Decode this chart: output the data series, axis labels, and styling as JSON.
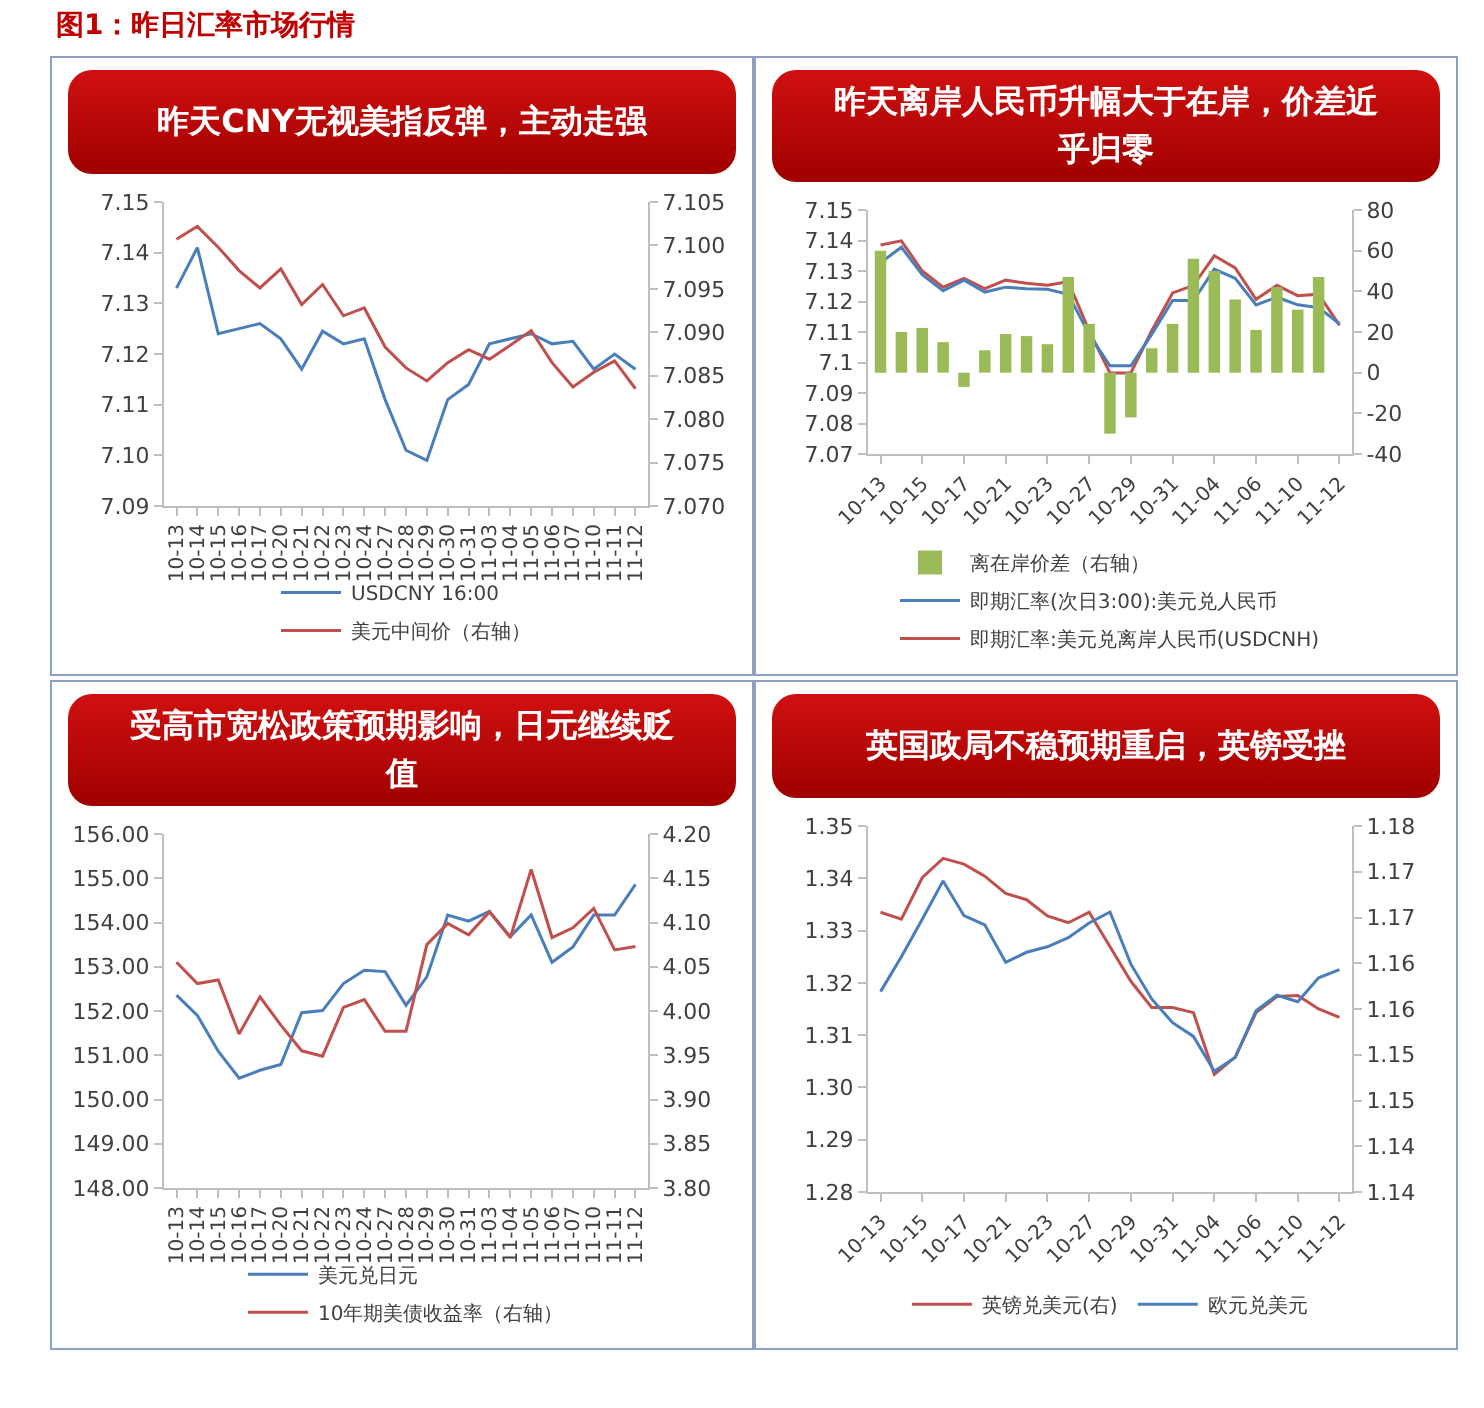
{
  "chart_data": [
    {
      "type": "line",
      "title": "昨天CNY无视美指反弹，主动走强",
      "annotations": [
        "图1：昨日汇率市场行情"
      ],
      "categories": [
        "10-13",
        "10-14",
        "10-15",
        "10-16",
        "10-17",
        "10-20",
        "10-21",
        "10-22",
        "10-23",
        "10-24",
        "10-27",
        "10-28",
        "10-29",
        "10-30",
        "10-31",
        "11-03",
        "11-04",
        "11-05",
        "11-06",
        "11-07",
        "11-10",
        "11-11",
        "11-12"
      ],
      "series": [
        {
          "name": "USDCNY 16:00",
          "color": "#4a7ebb",
          "values": [
            7.133,
            7.141,
            7.124,
            7.125,
            7.126,
            7.123,
            7.117,
            7.1245,
            7.122,
            7.123,
            7.111,
            7.101,
            7.099,
            7.111,
            7.114,
            7.122,
            7.123,
            7.124,
            7.122,
            7.1225,
            7.117,
            7.12,
            7.117
          ]
        },
        {
          "name": "美元中间价（右轴）",
          "color": "#c0504d",
          "axis": "y2",
          "values": [
            7.1007,
            7.1022,
            7.0998,
            7.0971,
            7.0951,
            7.0973,
            7.0932,
            7.0955,
            7.0919,
            7.0928,
            7.0883,
            7.0859,
            7.0844,
            7.0865,
            7.088,
            7.0869,
            7.0885,
            7.0902,
            7.0865,
            7.0837,
            7.0854,
            7.0867,
            7.0835
          ]
        }
      ],
      "ylim": [
        7.09,
        7.15
      ],
      "yticks": [
        7.09,
        {
          "value": 7.1,
          "label": "7.10"
        },
        7.11,
        7.12,
        7.13,
        7.14,
        7.15
      ],
      "y2lim": [
        7.07,
        7.105
      ],
      "y2ticks": [
        {
          "value": 7.07,
          "label": "7.070"
        },
        7.075,
        {
          "value": 7.08,
          "label": "7.080"
        },
        7.085,
        {
          "value": 7.09,
          "label": "7.090"
        },
        7.095,
        {
          "value": 7.1,
          "label": "7.100"
        },
        7.105
      ],
      "legend": "bottom"
    },
    {
      "type": "line",
      "title": "昨天离岸人民币升幅大于在岸，价差近乎归零",
      "categories": [
        "10-13",
        null,
        "10-15",
        null,
        "10-17",
        null,
        "10-21",
        null,
        "10-23",
        null,
        "10-27",
        null,
        "10-29",
        null,
        "10-31",
        null,
        "11-04",
        null,
        "11-06",
        null,
        "11-10",
        null,
        "11-12"
      ],
      "series": [
        {
          "name": "离在岸价差（右轴）",
          "type": "bar",
          "axis": "y2",
          "color": "#9bbb59",
          "values": [
            60,
            20,
            22,
            15,
            -7,
            11,
            19,
            18,
            14,
            47,
            24,
            -30,
            -22,
            12,
            24,
            56,
            50,
            36,
            21,
            42,
            31,
            47,
            0
          ]
        },
        {
          "name": "即期汇率(次日3:00):美元兑人民币",
          "color": "#4a7ebb",
          "values": [
            7.1327,
            7.1378,
            7.1288,
            7.1235,
            7.127,
            7.1231,
            7.1247,
            7.1242,
            7.124,
            7.1224,
            7.1092,
            7.0989,
            7.0989,
            7.1092,
            7.1203,
            7.1203,
            7.1306,
            7.1276,
            7.1189,
            7.1214,
            7.1189,
            7.118,
            7.1127
          ]
        },
        {
          "name": "即期汇率:美元兑离岸人民币(USDCNH)",
          "color": "#c0504d",
          "values": [
            7.1385,
            7.1399,
            7.13,
            7.1247,
            7.1276,
            7.1242,
            7.127,
            7.126,
            7.1253,
            7.1265,
            7.1104,
            7.0966,
            7.0966,
            7.1104,
            7.1228,
            7.1253,
            7.135,
            7.131,
            7.1207,
            7.1253,
            7.1219,
            7.1224,
            7.1122
          ]
        }
      ],
      "ylim": [
        7.07,
        7.15
      ],
      "yticks": [
        7.07,
        7.08,
        7.09,
        7.1,
        7.11,
        7.12,
        7.13,
        7.14,
        7.15
      ],
      "y2lim": [
        -40,
        80
      ],
      "y2ticks": [
        -40,
        -20,
        0,
        20,
        40,
        60,
        80
      ],
      "legend": "bottom"
    },
    {
      "type": "line",
      "title": "受高市宽松政策预期影响，日元继续贬值",
      "categories": [
        "10-13",
        "10-14",
        "10-15",
        "10-16",
        "10-17",
        "10-20",
        "10-21",
        "10-22",
        "10-23",
        "10-24",
        "10-27",
        "10-28",
        "10-29",
        "10-30",
        "10-31",
        "11-03",
        "11-04",
        "11-05",
        "11-06",
        "11-07",
        "11-10",
        "11-11",
        "11-12"
      ],
      "series": [
        {
          "name": "美元兑日元",
          "color": "#4a7ebb",
          "values": [
            152.36,
            151.9,
            151.09,
            150.48,
            150.66,
            150.79,
            151.96,
            152.01,
            152.62,
            152.92,
            152.89,
            152.13,
            152.77,
            154.17,
            154.03,
            154.25,
            153.68,
            154.17,
            153.1,
            153.45,
            154.17,
            154.17,
            154.86
          ]
        },
        {
          "name": "10年期美债收益率（右轴）",
          "color": "#c0504d",
          "axis": "y2",
          "values": [
            4.055,
            4.031,
            4.035,
            3.974,
            4.016,
            3.984,
            3.955,
            3.949,
            4.004,
            4.013,
            3.977,
            3.977,
            4.075,
            4.099,
            4.086,
            4.112,
            4.083,
            4.16,
            4.083,
            4.094,
            4.116,
            4.069,
            4.073
          ]
        }
      ],
      "ylim": [
        148,
        156
      ],
      "yticks": [
        {
          "value": 148,
          "label": "148.00"
        },
        {
          "value": 149,
          "label": "149.00"
        },
        {
          "value": 150,
          "label": "150.00"
        },
        {
          "value": 151,
          "label": "151.00"
        },
        {
          "value": 152,
          "label": "152.00"
        },
        {
          "value": 153,
          "label": "153.00"
        },
        {
          "value": 154,
          "label": "154.00"
        },
        {
          "value": 155,
          "label": "155.00"
        },
        {
          "value": 156,
          "label": "156.00"
        }
      ],
      "y2lim": [
        3.8,
        4.2
      ],
      "y2ticks": [
        {
          "value": 3.8,
          "label": "3.80"
        },
        3.85,
        {
          "value": 3.9,
          "label": "3.90"
        },
        3.95,
        {
          "value": 4,
          "label": "4.00"
        },
        4.05,
        {
          "value": 4.1,
          "label": "4.10"
        },
        4.15,
        {
          "value": 4.2,
          "label": "4.20"
        }
      ],
      "legend": "bottom"
    },
    {
      "type": "line",
      "title": "英国政局不稳预期重启，英镑受挫",
      "categories": [
        "10-13",
        null,
        "10-15",
        null,
        "10-17",
        null,
        "10-21",
        null,
        "10-23",
        null,
        "10-27",
        null,
        "10-29",
        null,
        "10-31",
        null,
        "11-04",
        null,
        "11-06",
        null,
        "11-10",
        null,
        "11-12"
      ],
      "series": [
        {
          "name": "英镑兑美元(右)",
          "color": "#c0504d",
          "values": [
            1.3335,
            1.3322,
            1.3401,
            1.3438,
            1.3427,
            1.3404,
            1.3371,
            1.3359,
            1.3328,
            1.3315,
            1.3335,
            1.3269,
            1.3203,
            1.3153,
            1.3153,
            1.3143,
            1.3025,
            1.3058,
            1.3143,
            1.3174,
            1.3176,
            1.315,
            1.3134
          ]
        },
        {
          "name": "欧元兑美元",
          "color": "#4a7ebb",
          "axis": "y2",
          "values": [
            1.1619,
            1.1657,
            1.1698,
            1.174,
            1.1702,
            1.1692,
            1.1651,
            1.1662,
            1.1668,
            1.1678,
            1.1694,
            1.1706,
            1.1649,
            1.1611,
            1.1585,
            1.157,
            1.1532,
            1.1547,
            1.1598,
            1.1615,
            1.1608,
            1.1634,
            1.1643
          ]
        }
      ],
      "ylim": [
        1.28,
        1.35
      ],
      "yticks": [
        {
          "value": 1.28,
          "label": "1.28"
        },
        1.29,
        {
          "value": 1.3,
          "label": "1.30"
        },
        1.31,
        1.32,
        1.33,
        1.34,
        1.35
      ],
      "y2lim": [
        1.14,
        1.18
      ],
      "y2ticks": [
        1.14,
        {
          "value": 1.145,
          "label": "1.14"
        },
        {
          "value": 1.15,
          "label": "1.15"
        },
        {
          "value": 1.155,
          "label": "1.15"
        },
        1.16,
        {
          "value": 1.165,
          "label": "1.16"
        },
        1.17,
        {
          "value": 1.175,
          "label": "1.17"
        },
        1.18
      ],
      "legend": "bottom"
    }
  ]
}
